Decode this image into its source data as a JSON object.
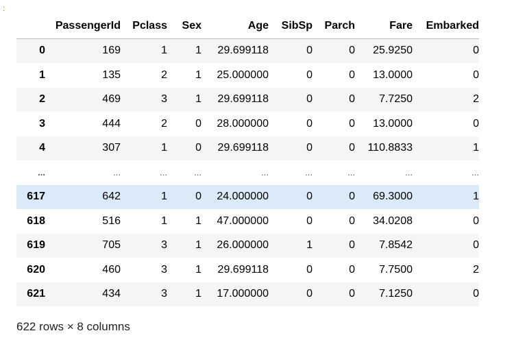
{
  "prompt_marker": ":",
  "table": {
    "columns": [
      "",
      "PassengerId",
      "Pclass",
      "Sex",
      "Age",
      "SibSp",
      "Parch",
      "Fare",
      "Embarked"
    ],
    "rows": [
      [
        "0",
        "169",
        "1",
        "1",
        "29.699118",
        "0",
        "0",
        "25.9250",
        "0"
      ],
      [
        "1",
        "135",
        "2",
        "1",
        "25.000000",
        "0",
        "0",
        "13.0000",
        "0"
      ],
      [
        "2",
        "469",
        "3",
        "1",
        "29.699118",
        "0",
        "0",
        "7.7250",
        "2"
      ],
      [
        "3",
        "444",
        "2",
        "0",
        "28.000000",
        "0",
        "0",
        "13.0000",
        "0"
      ],
      [
        "4",
        "307",
        "1",
        "0",
        "29.699118",
        "0",
        "0",
        "110.8833",
        "1"
      ],
      [
        "...",
        "...",
        "...",
        "...",
        "...",
        "...",
        "...",
        "...",
        "..."
      ],
      [
        "617",
        "642",
        "1",
        "0",
        "24.000000",
        "0",
        "0",
        "69.3000",
        "1"
      ],
      [
        "618",
        "516",
        "1",
        "1",
        "47.000000",
        "0",
        "0",
        "34.0208",
        "0"
      ],
      [
        "619",
        "705",
        "3",
        "1",
        "26.000000",
        "1",
        "0",
        "7.8542",
        "0"
      ],
      [
        "620",
        "460",
        "3",
        "1",
        "29.699118",
        "0",
        "0",
        "7.7500",
        "2"
      ],
      [
        "621",
        "434",
        "3",
        "1",
        "17.000000",
        "0",
        "0",
        "7.1250",
        "0"
      ]
    ],
    "highlighted_row": "617"
  },
  "footer": "622 rows × 8 columns"
}
